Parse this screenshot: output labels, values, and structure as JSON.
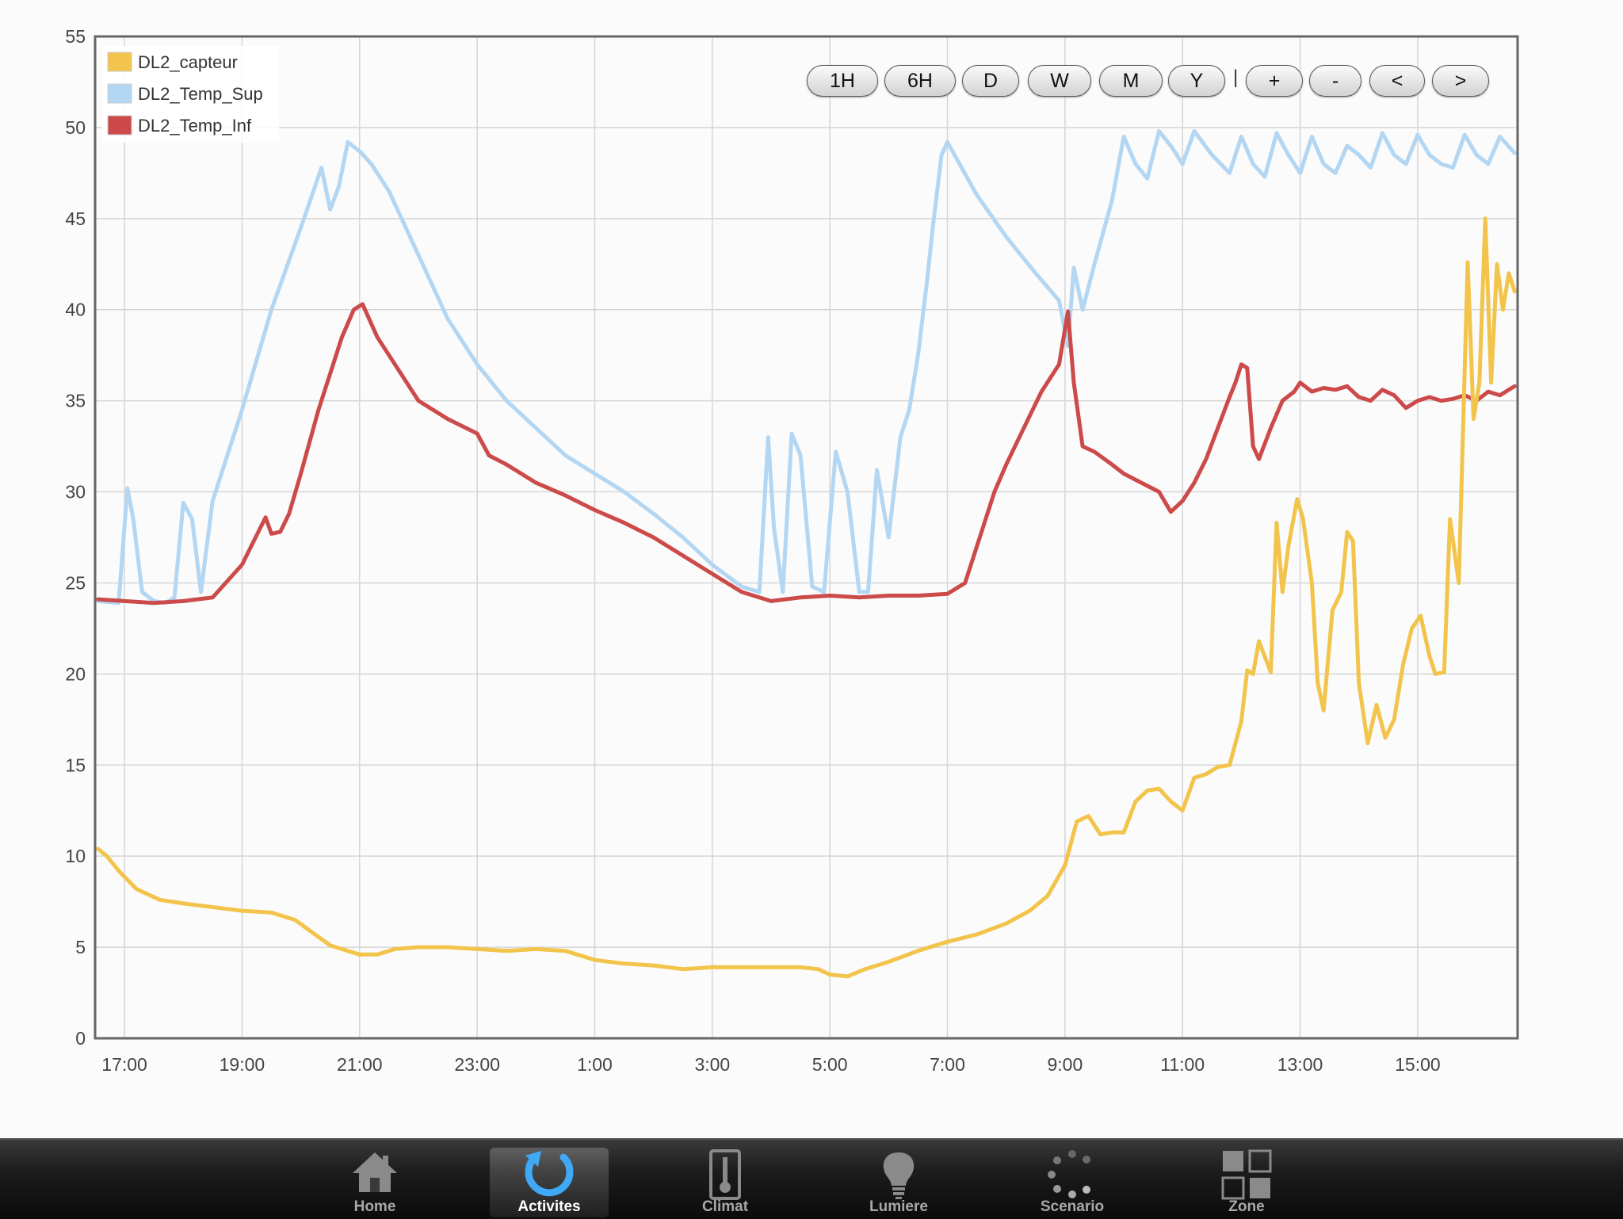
{
  "chart_data": {
    "type": "line",
    "ylim": [
      0,
      55
    ],
    "yticks": [
      0,
      5,
      10,
      15,
      20,
      25,
      30,
      35,
      40,
      45,
      50,
      55
    ],
    "x_start_hour": 16.5,
    "x_end_hour": 40.7,
    "xticks": [
      {
        "label": "17:00",
        "hour": 17
      },
      {
        "label": "19:00",
        "hour": 19
      },
      {
        "label": "21:00",
        "hour": 21
      },
      {
        "label": "23:00",
        "hour": 23
      },
      {
        "label": "1:00",
        "hour": 25
      },
      {
        "label": "3:00",
        "hour": 27
      },
      {
        "label": "5:00",
        "hour": 29
      },
      {
        "label": "7:00",
        "hour": 31
      },
      {
        "label": "9:00",
        "hour": 33
      },
      {
        "label": "11:00",
        "hour": 35
      },
      {
        "label": "13:00",
        "hour": 37
      },
      {
        "label": "15:00",
        "hour": 39
      }
    ],
    "grid": true,
    "legend_position": "top-left",
    "series": [
      {
        "name": "DL2_capteur",
        "color": "#f2c44b",
        "x": [
          16.55,
          16.7,
          16.9,
          17.2,
          17.6,
          18.0,
          18.5,
          19.0,
          19.5,
          19.9,
          20.2,
          20.5,
          20.8,
          21.0,
          21.3,
          21.6,
          22.0,
          22.5,
          23.0,
          23.5,
          24.0,
          24.5,
          25.0,
          25.5,
          26.0,
          26.5,
          27.0,
          27.5,
          28.0,
          28.5,
          28.8,
          29.0,
          29.3,
          29.6,
          30.0,
          30.5,
          31.0,
          31.5,
          32.0,
          32.4,
          32.7,
          33.0,
          33.2,
          33.4,
          33.6,
          33.8,
          34.0,
          34.2,
          34.4,
          34.6,
          34.8,
          35.0,
          35.2,
          35.4,
          35.6,
          35.8,
          36.0,
          36.1,
          36.2,
          36.3,
          36.5,
          36.6,
          36.7,
          36.8,
          36.95,
          37.05,
          37.2,
          37.3,
          37.4,
          37.55,
          37.7,
          37.8,
          37.9,
          38.0,
          38.15,
          38.3,
          38.45,
          38.6,
          38.75,
          38.9,
          39.05,
          39.2,
          39.3,
          39.45,
          39.55,
          39.7,
          39.85,
          39.95,
          40.05,
          40.15,
          40.25,
          40.35,
          40.45,
          40.55,
          40.65
        ],
        "values": [
          10.4,
          10.0,
          9.2,
          8.2,
          7.6,
          7.4,
          7.2,
          7.0,
          6.9,
          6.5,
          5.8,
          5.1,
          4.8,
          4.6,
          4.6,
          4.9,
          5.0,
          5.0,
          4.9,
          4.8,
          4.9,
          4.8,
          4.3,
          4.1,
          4.0,
          3.8,
          3.9,
          3.9,
          3.9,
          3.9,
          3.8,
          3.5,
          3.4,
          3.8,
          4.2,
          4.8,
          5.3,
          5.7,
          6.3,
          7.0,
          7.8,
          9.5,
          11.9,
          12.2,
          11.2,
          11.3,
          11.3,
          13.0,
          13.6,
          13.7,
          13.0,
          12.5,
          14.3,
          14.5,
          14.9,
          15.0,
          17.4,
          20.2,
          20.0,
          21.8,
          20.1,
          28.3,
          24.5,
          27.0,
          29.6,
          28.5,
          25.0,
          19.5,
          18.0,
          23.5,
          24.5,
          27.8,
          27.3,
          19.5,
          16.2,
          18.3,
          16.5,
          17.5,
          20.5,
          22.5,
          23.2,
          21.0,
          20.0,
          20.1,
          28.5,
          25.0,
          42.6,
          34.0,
          36.0,
          45.0,
          36.0,
          42.5,
          40.0,
          42.0,
          41.0
        ]
      },
      {
        "name": "DL2_Temp_Sup",
        "color": "#b3d6f3",
        "x": [
          16.55,
          16.9,
          17.05,
          17.15,
          17.3,
          17.5,
          17.7,
          17.85,
          18.0,
          18.15,
          18.3,
          18.5,
          19.0,
          19.5,
          20.0,
          20.35,
          20.5,
          20.65,
          20.8,
          21.0,
          21.2,
          21.5,
          22.0,
          22.5,
          23.0,
          23.5,
          24.0,
          24.5,
          25.0,
          25.5,
          26.0,
          26.5,
          27.0,
          27.5,
          27.8,
          27.95,
          28.05,
          28.2,
          28.35,
          28.5,
          28.7,
          28.9,
          29.1,
          29.3,
          29.5,
          29.65,
          29.8,
          30.0,
          30.2,
          30.35,
          30.5,
          30.65,
          30.75,
          30.9,
          31.0,
          31.5,
          32.0,
          32.5,
          32.9,
          33.05,
          33.15,
          33.3,
          33.5,
          33.8,
          34.0,
          34.2,
          34.4,
          34.6,
          34.8,
          35.0,
          35.2,
          35.5,
          35.8,
          36.0,
          36.2,
          36.4,
          36.6,
          36.8,
          37.0,
          37.2,
          37.4,
          37.6,
          37.8,
          38.0,
          38.2,
          38.4,
          38.6,
          38.8,
          39.0,
          39.2,
          39.4,
          39.6,
          39.8,
          40.0,
          40.2,
          40.4,
          40.65
        ],
        "values": [
          24.0,
          23.9,
          30.2,
          28.5,
          24.5,
          24.0,
          23.9,
          24.2,
          29.4,
          28.5,
          24.5,
          29.5,
          34.5,
          40.0,
          44.5,
          47.8,
          45.5,
          46.8,
          49.2,
          48.7,
          48.0,
          46.5,
          43.0,
          39.5,
          37.0,
          35.0,
          33.5,
          32.0,
          31.0,
          30.0,
          28.8,
          27.5,
          26.0,
          24.8,
          24.5,
          33.0,
          28.0,
          24.5,
          33.2,
          32.0,
          24.8,
          24.5,
          32.2,
          30.0,
          24.5,
          24.5,
          31.2,
          27.5,
          33.0,
          34.5,
          37.5,
          41.5,
          44.5,
          48.5,
          49.2,
          46.3,
          44.0,
          42.0,
          40.5,
          38.0,
          42.3,
          40.0,
          42.5,
          46.0,
          49.5,
          48.0,
          47.2,
          49.8,
          49.0,
          48.0,
          49.8,
          48.5,
          47.5,
          49.5,
          48.0,
          47.3,
          49.7,
          48.5,
          47.5,
          49.5,
          48.0,
          47.5,
          49.0,
          48.5,
          47.8,
          49.7,
          48.5,
          48.0,
          49.6,
          48.5,
          48.0,
          47.8,
          49.6,
          48.5,
          48.0,
          49.5,
          48.6
        ]
      },
      {
        "name": "DL2_Temp_Inf",
        "color": "#cc4a4a",
        "x": [
          16.55,
          17.0,
          17.5,
          18.0,
          18.5,
          19.0,
          19.4,
          19.5,
          19.65,
          19.8,
          20.0,
          20.3,
          20.5,
          20.7,
          20.9,
          21.05,
          21.3,
          21.6,
          22.0,
          22.5,
          23.0,
          23.2,
          23.5,
          24.0,
          24.5,
          25.0,
          25.5,
          26.0,
          26.5,
          27.0,
          27.5,
          28.0,
          28.5,
          29.0,
          29.5,
          30.0,
          30.5,
          31.0,
          31.3,
          31.5,
          31.8,
          32.0,
          32.3,
          32.6,
          32.9,
          33.05,
          33.15,
          33.3,
          33.5,
          33.8,
          34.0,
          34.3,
          34.6,
          34.8,
          35.0,
          35.2,
          35.4,
          35.6,
          35.8,
          35.9,
          36.0,
          36.1,
          36.2,
          36.3,
          36.5,
          36.7,
          36.9,
          37.0,
          37.2,
          37.4,
          37.6,
          37.8,
          38.0,
          38.2,
          38.4,
          38.6,
          38.8,
          39.0,
          39.2,
          39.4,
          39.6,
          39.8,
          40.0,
          40.2,
          40.4,
          40.55,
          40.65
        ],
        "values": [
          24.1,
          24.0,
          23.9,
          24.0,
          24.2,
          26.0,
          28.6,
          27.7,
          27.8,
          28.8,
          31.0,
          34.5,
          36.5,
          38.5,
          40.0,
          40.3,
          38.5,
          37.0,
          35.0,
          34.0,
          33.2,
          32.0,
          31.5,
          30.5,
          29.8,
          29.0,
          28.3,
          27.5,
          26.5,
          25.5,
          24.5,
          24.0,
          24.2,
          24.3,
          24.2,
          24.3,
          24.3,
          24.4,
          25.0,
          27.0,
          30.0,
          31.5,
          33.5,
          35.5,
          37.0,
          39.9,
          36.0,
          32.5,
          32.2,
          31.5,
          31.0,
          30.5,
          30.0,
          28.9,
          29.5,
          30.5,
          31.8,
          33.5,
          35.2,
          36.0,
          37.0,
          36.8,
          32.5,
          31.8,
          33.5,
          35.0,
          35.5,
          36.0,
          35.5,
          35.7,
          35.6,
          35.8,
          35.2,
          35.0,
          35.6,
          35.3,
          34.6,
          35.0,
          35.2,
          35.0,
          35.1,
          35.3,
          35.0,
          35.5,
          35.3,
          35.6,
          35.8
        ]
      }
    ]
  },
  "range_buttons": [
    {
      "label": "1H"
    },
    {
      "label": "6H"
    },
    {
      "label": "D"
    },
    {
      "label": "W"
    },
    {
      "label": "M"
    },
    {
      "label": "Y"
    },
    {
      "label": "+"
    },
    {
      "label": "-"
    },
    {
      "label": "<"
    },
    {
      "label": ">"
    }
  ],
  "button_separator": "|",
  "tabbar": {
    "active": "activites",
    "items": [
      {
        "key": "home",
        "label": "Home",
        "icon": "house-icon"
      },
      {
        "key": "activites",
        "label": "Activites",
        "icon": "refresh-icon"
      },
      {
        "key": "climat",
        "label": "Climat",
        "icon": "thermometer-icon"
      },
      {
        "key": "lumiere",
        "label": "Lumiere",
        "icon": "lightbulb-icon"
      },
      {
        "key": "scenario",
        "label": "Scenario",
        "icon": "spinner-icon"
      },
      {
        "key": "zone",
        "label": "Zone",
        "icon": "grid-icon"
      }
    ]
  }
}
